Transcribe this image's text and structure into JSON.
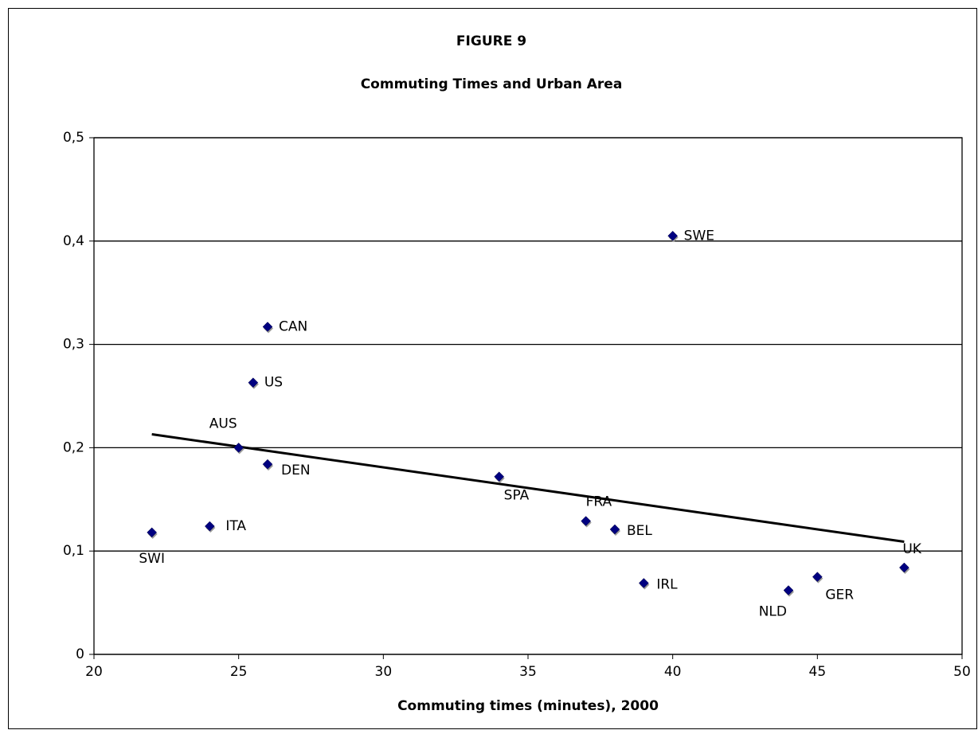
{
  "chart_data": {
    "type": "scatter",
    "title": "FIGURE 9",
    "subtitle": "Commuting Times and Urban Area",
    "x_label": "Commuting times (minutes), 2000",
    "labels": [
      "SWI",
      "ITA",
      "AUS",
      "DEN",
      "US",
      "CAN",
      "SPA",
      "FRA",
      "BEL",
      "IRL",
      "NLD",
      "GER",
      "UK",
      "SWE"
    ],
    "x": [
      22,
      24,
      25,
      26,
      25.5,
      26,
      34,
      37,
      38,
      39,
      44,
      45,
      48,
      40
    ],
    "values": [
      0.118,
      0.124,
      0.2,
      0.184,
      0.263,
      0.317,
      0.172,
      0.129,
      0.121,
      0.069,
      0.062,
      0.075,
      0.084,
      0.405
    ],
    "color": "#000080",
    "trendline": {
      "x": [
        22,
        48
      ],
      "values": [
        0.213,
        0.109
      ],
      "color": "#000000"
    },
    "xlim": [
      20,
      50
    ],
    "xticks": [
      20,
      25,
      30,
      35,
      40,
      45,
      50
    ],
    "ylim": [
      0,
      0.5
    ],
    "yticks": [
      0,
      {
        "value": 0.1,
        "label": "0,1"
      },
      {
        "value": 0.2,
        "label": "0,2"
      },
      {
        "value": 0.3,
        "label": "0,3"
      },
      {
        "value": 0.4,
        "label": "0,4"
      },
      {
        "value": 0.5,
        "label": "0,5"
      }
    ],
    "grid": true
  }
}
